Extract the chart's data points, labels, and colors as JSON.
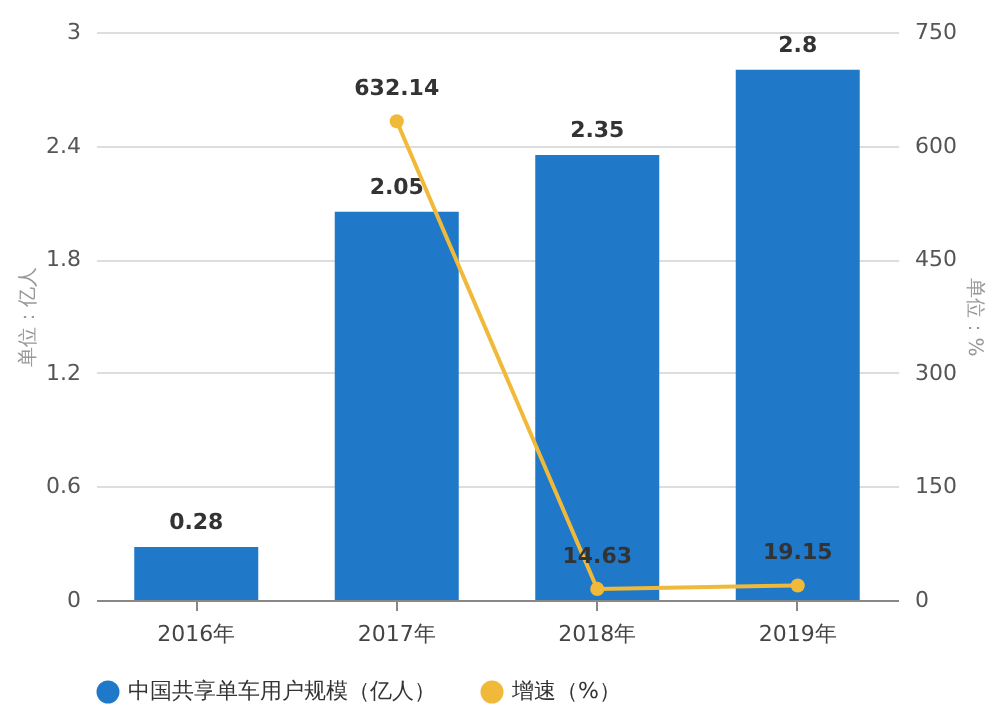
{
  "chart_data": {
    "type": "bar",
    "ylabel": "单位：亿人",
    "y2label": "单位：%",
    "categories": [
      "2016年",
      "2017年",
      "2018年",
      "2019年"
    ],
    "series": [
      {
        "name": "中国共享单车用户规模（亿人）",
        "color": "#1f78c8",
        "values": [
          0.28,
          2.05,
          2.35,
          2.8
        ]
      },
      {
        "name": "增速（%）",
        "type": "line",
        "axis": "y2",
        "color": "#f0b93a",
        "values": [
          null,
          632.14,
          14.63,
          19.15
        ]
      }
    ],
    "ylim": [
      0,
      3
    ],
    "yticks": [
      0,
      0.6,
      1.2,
      1.8,
      2.4,
      3
    ],
    "y2lim": [
      0,
      750
    ],
    "y2ticks": [
      0,
      150,
      300,
      450,
      600,
      750
    ],
    "data_labels": true,
    "grid": "y",
    "legend": "bottom",
    "marker": "circle",
    "line_style": "solid"
  }
}
